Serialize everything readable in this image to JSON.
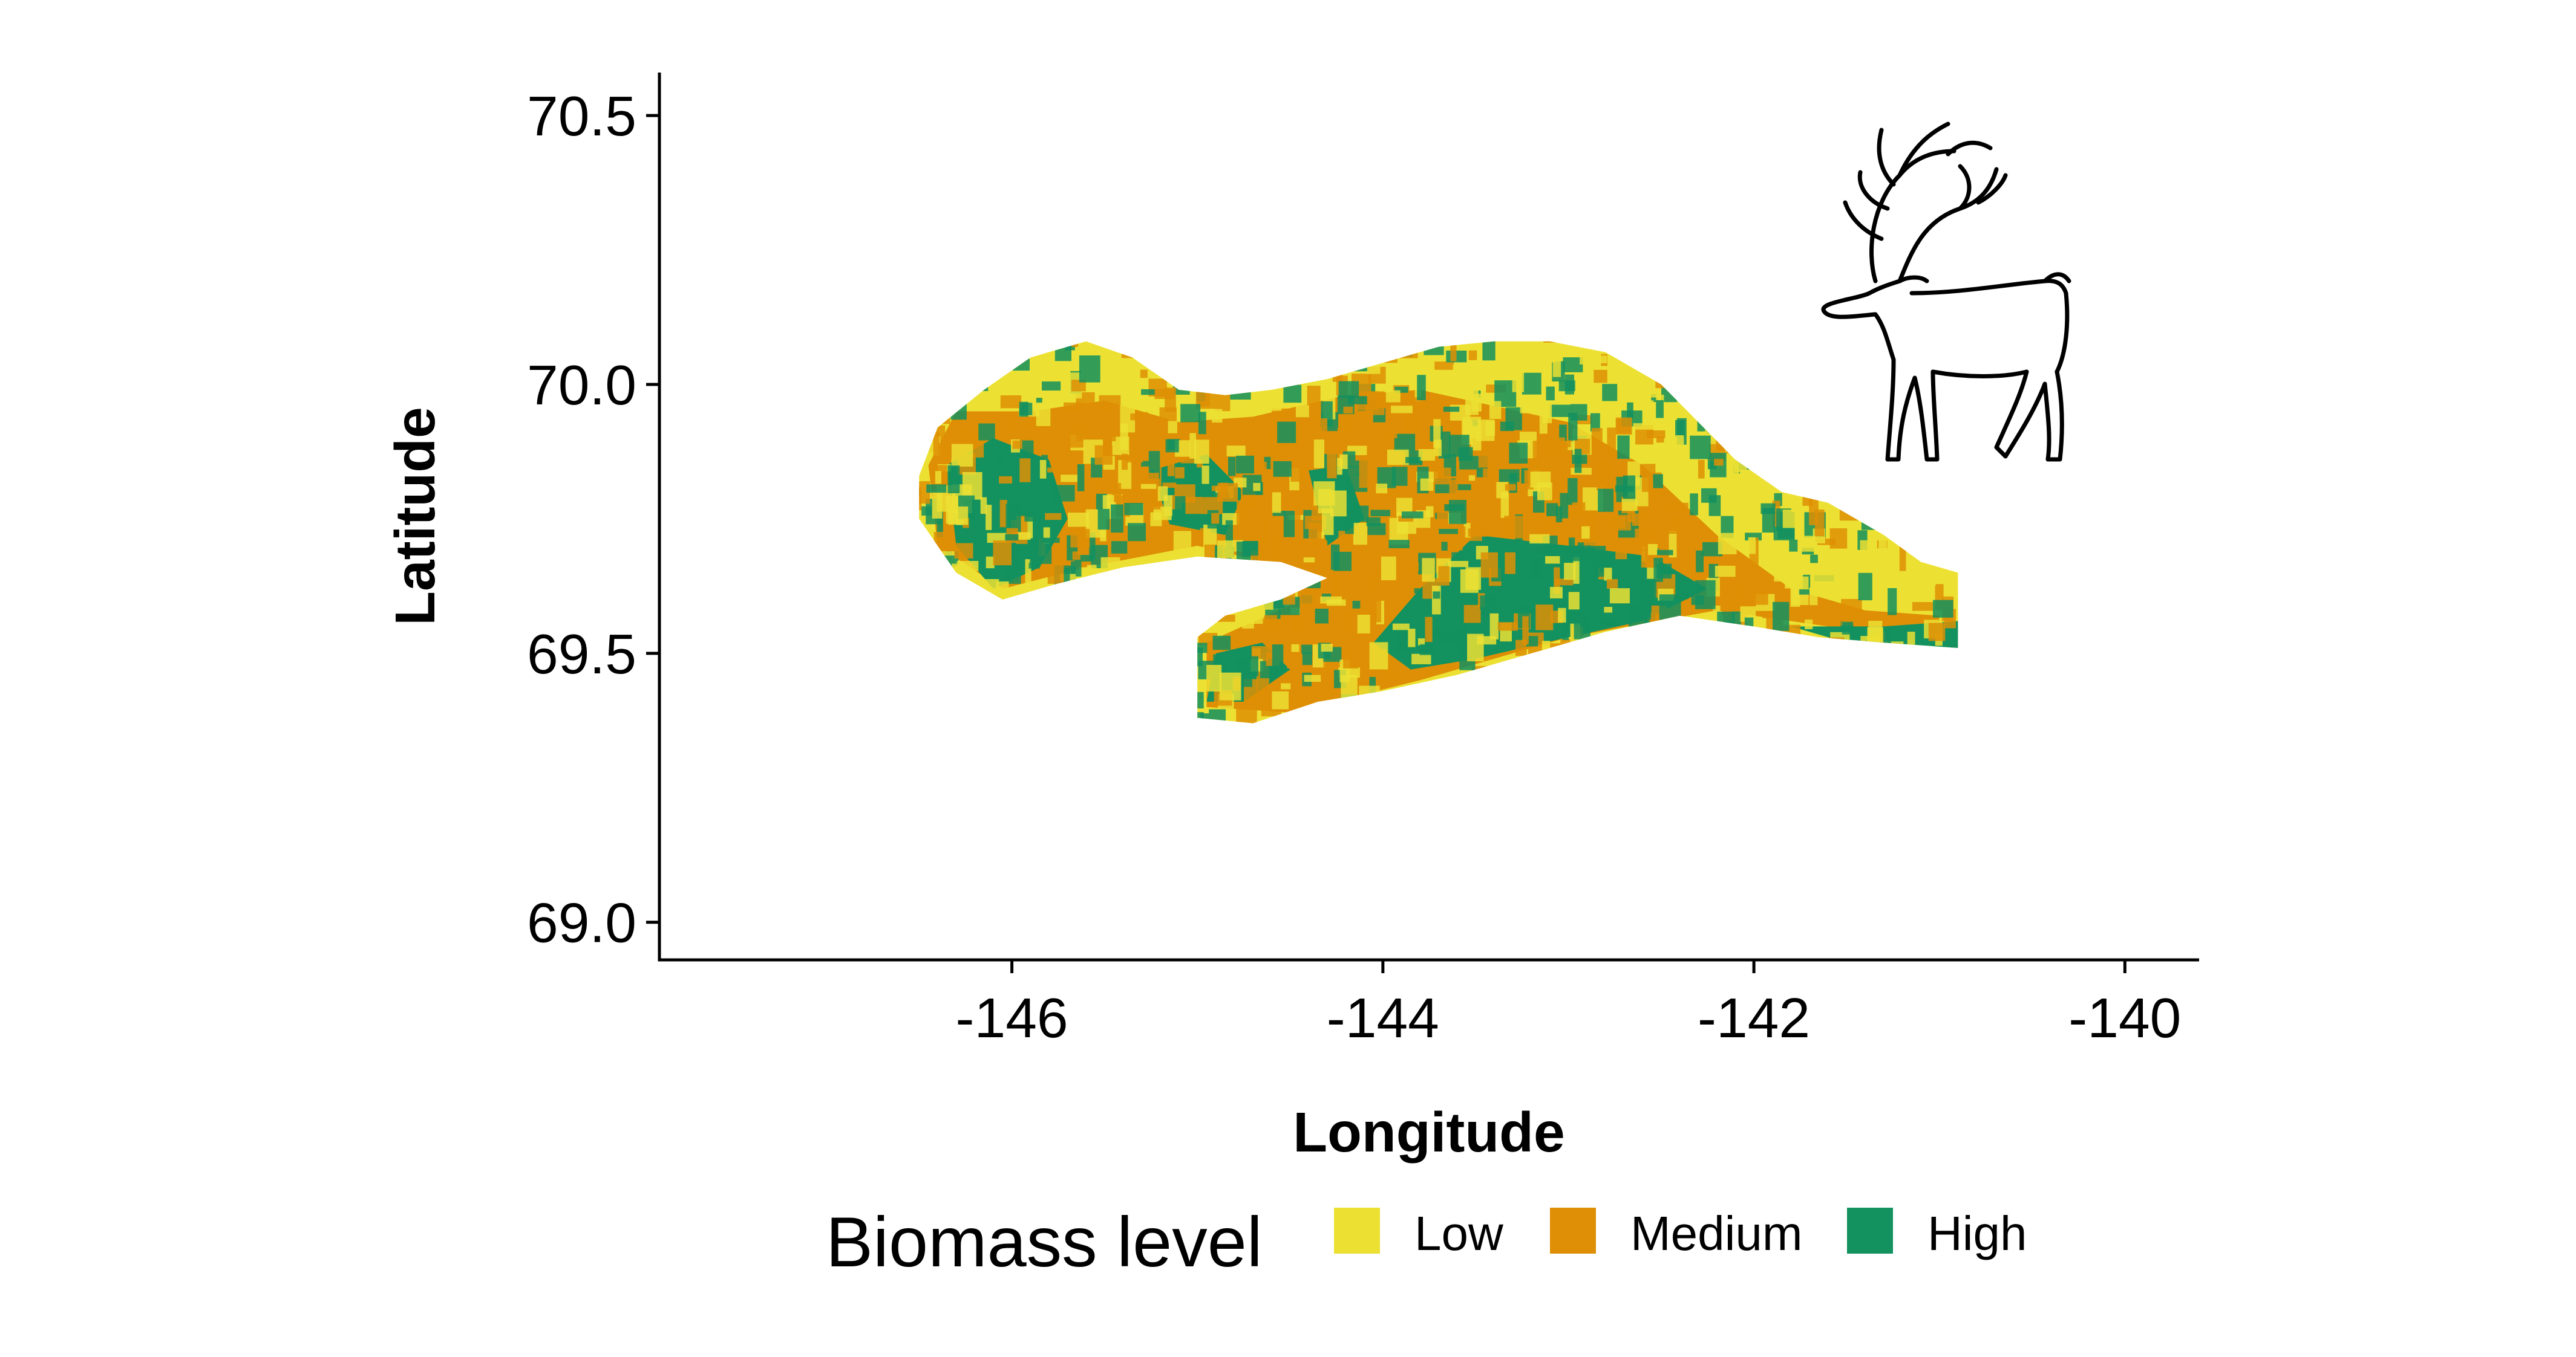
{
  "chart_data": {
    "type": "heatmap",
    "xlabel": "Longitude",
    "ylabel": "Latitude",
    "xlim": [
      -147.9,
      -139.6
    ],
    "ylim": [
      68.93,
      70.58
    ],
    "x_ticks": [
      -146,
      -144,
      -142,
      -140
    ],
    "x_tick_labels": [
      "-146",
      "-144",
      "-142",
      "-140"
    ],
    "y_ticks": [
      69.0,
      69.5,
      70.0,
      70.5
    ],
    "y_tick_labels": [
      "69.0",
      "69.5",
      "70.0",
      "70.5"
    ],
    "grid": false,
    "legend": {
      "title": "Biomass level",
      "position": "bottom",
      "entries": [
        {
          "label": "Low",
          "color": "#ECE133"
        },
        {
          "label": "Medium",
          "color": "#DE8F05"
        },
        {
          "label": "High",
          "color": "#13915F"
        }
      ]
    },
    "region_outline_lonlat": [
      [
        -146.5,
        69.83
      ],
      [
        -146.4,
        69.92
      ],
      [
        -146.15,
        69.99
      ],
      [
        -145.9,
        70.05
      ],
      [
        -145.6,
        70.08
      ],
      [
        -145.35,
        70.05
      ],
      [
        -145.1,
        69.99
      ],
      [
        -144.85,
        69.98
      ],
      [
        -144.6,
        69.99
      ],
      [
        -144.3,
        70.01
      ],
      [
        -144.0,
        70.04
      ],
      [
        -143.7,
        70.07
      ],
      [
        -143.4,
        70.08
      ],
      [
        -143.1,
        70.08
      ],
      [
        -142.8,
        70.06
      ],
      [
        -142.5,
        70.0
      ],
      [
        -142.3,
        69.93
      ],
      [
        -142.1,
        69.86
      ],
      [
        -141.85,
        69.8
      ],
      [
        -141.6,
        69.78
      ],
      [
        -141.3,
        69.72
      ],
      [
        -141.1,
        69.67
      ],
      [
        -140.9,
        69.65
      ],
      [
        -140.9,
        69.51
      ],
      [
        -141.3,
        69.52
      ],
      [
        -141.65,
        69.53
      ],
      [
        -142.0,
        69.55
      ],
      [
        -142.4,
        69.57
      ],
      [
        -142.8,
        69.54
      ],
      [
        -143.2,
        69.5
      ],
      [
        -143.6,
        69.46
      ],
      [
        -144.0,
        69.43
      ],
      [
        -144.35,
        69.41
      ],
      [
        -144.7,
        69.37
      ],
      [
        -145.0,
        69.38
      ],
      [
        -145.0,
        69.53
      ],
      [
        -144.85,
        69.57
      ],
      [
        -144.55,
        69.6
      ],
      [
        -144.3,
        69.64
      ],
      [
        -144.55,
        69.67
      ],
      [
        -145.0,
        69.68
      ],
      [
        -145.4,
        69.66
      ],
      [
        -145.75,
        69.63
      ],
      [
        -146.05,
        69.6
      ],
      [
        -146.3,
        69.65
      ],
      [
        -146.5,
        69.75
      ]
    ],
    "biomass_zones_lonlat": {
      "Medium": [
        [
          [
            -146.3,
            69.95
          ],
          [
            -145.9,
            69.95
          ],
          [
            -145.5,
            69.97
          ],
          [
            -145.1,
            69.93
          ],
          [
            -144.7,
            69.94
          ],
          [
            -144.2,
            69.98
          ],
          [
            -143.8,
            69.99
          ],
          [
            -143.4,
            69.96
          ],
          [
            -143.0,
            69.93
          ],
          [
            -142.6,
            69.85
          ],
          [
            -142.2,
            69.72
          ],
          [
            -141.8,
            69.62
          ],
          [
            -141.4,
            69.58
          ],
          [
            -141.0,
            69.57
          ],
          [
            -141.0,
            69.52
          ],
          [
            -141.6,
            69.55
          ],
          [
            -142.2,
            69.58
          ],
          [
            -143.0,
            69.53
          ],
          [
            -143.8,
            69.45
          ],
          [
            -144.5,
            69.39
          ],
          [
            -144.95,
            69.4
          ],
          [
            -144.95,
            69.52
          ],
          [
            -144.5,
            69.59
          ],
          [
            -144.4,
            69.65
          ],
          [
            -145.0,
            69.7
          ],
          [
            -145.6,
            69.66
          ],
          [
            -146.05,
            69.62
          ],
          [
            -146.4,
            69.7
          ],
          [
            -146.45,
            69.85
          ]
        ]
      ],
      "High": [
        [
          [
            -146.35,
            69.85
          ],
          [
            -146.1,
            69.9
          ],
          [
            -145.8,
            69.86
          ],
          [
            -145.7,
            69.75
          ],
          [
            -145.85,
            69.66
          ],
          [
            -146.1,
            69.62
          ],
          [
            -146.3,
            69.7
          ]
        ],
        [
          [
            -145.25,
            69.84
          ],
          [
            -144.95,
            69.87
          ],
          [
            -144.75,
            69.8
          ],
          [
            -144.85,
            69.72
          ],
          [
            -145.15,
            69.74
          ]
        ],
        [
          [
            -144.4,
            69.84
          ],
          [
            -144.2,
            69.85
          ],
          [
            -144.1,
            69.75
          ],
          [
            -144.3,
            69.7
          ]
        ],
        [
          [
            -143.5,
            69.72
          ],
          [
            -143.0,
            69.7
          ],
          [
            -142.55,
            69.68
          ],
          [
            -142.25,
            69.62
          ],
          [
            -142.6,
            69.56
          ],
          [
            -143.0,
            69.53
          ],
          [
            -143.5,
            69.49
          ],
          [
            -143.85,
            69.47
          ],
          [
            -144.05,
            69.52
          ],
          [
            -143.8,
            69.62
          ]
        ],
        [
          [
            -144.9,
            69.5
          ],
          [
            -144.65,
            69.52
          ],
          [
            -144.5,
            69.47
          ],
          [
            -144.75,
            69.41
          ],
          [
            -144.95,
            69.41
          ]
        ],
        [
          [
            -141.8,
            69.55
          ],
          [
            -141.3,
            69.55
          ],
          [
            -140.9,
            69.56
          ],
          [
            -140.9,
            69.51
          ],
          [
            -141.5,
            69.52
          ]
        ]
      ]
    }
  },
  "icon": {
    "name": "caribou-icon"
  }
}
